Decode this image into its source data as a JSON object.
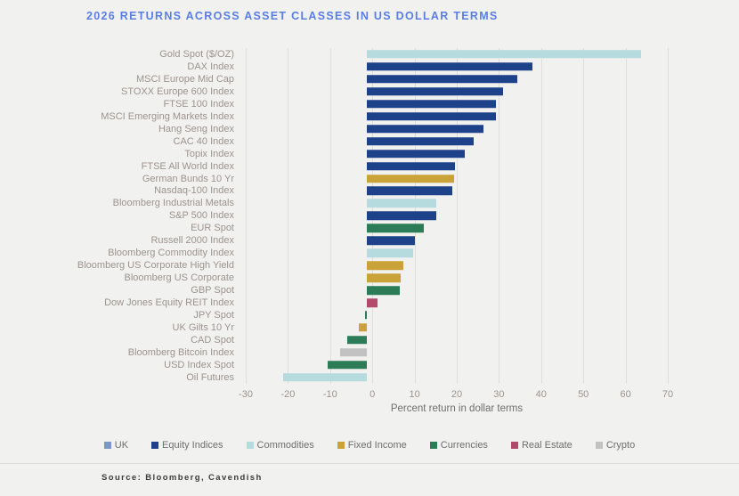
{
  "title": "2026 RETURNS ACROSS ASSET CLASSES IN US DOLLAR TERMS",
  "source": "Source: Bloomberg, Cavendish",
  "colors": {
    "background": "#f1f1ef",
    "title": "#5a7ee3",
    "gridline": "#dfdedb",
    "category_label": "#9d938e",
    "tick_label": "#9d938e",
    "axis_label": "#6f6f6f",
    "legend_text": "#6e6e6e",
    "source_text": "#3d3d3d"
  },
  "chart_data": {
    "type": "bar",
    "orientation": "horizontal",
    "title": "2026 RETURNS ACROSS ASSET CLASSES IN US DOLLAR TERMS",
    "xlabel": "Percent return in dollar terms",
    "ylabel": "",
    "xlim": [
      -30,
      70
    ],
    "xticks": [
      -30,
      -20,
      -10,
      0,
      10,
      20,
      30,
      40,
      50,
      60,
      70
    ],
    "grid": true,
    "legend_position": "bottom",
    "legend": [
      {
        "label": "UK",
        "color": "#7b96c7"
      },
      {
        "label": "Equity Indices",
        "color": "#1e4289"
      },
      {
        "label": "Commodities",
        "color": "#b5dbdf"
      },
      {
        "label": "Fixed Income",
        "color": "#c9a238"
      },
      {
        "label": "Currencies",
        "color": "#2c7d57"
      },
      {
        "label": "Real Estate",
        "color": "#b34a6b"
      },
      {
        "label": "Crypto",
        "color": "#c2c2c2"
      }
    ],
    "rows": [
      {
        "label": "Gold Spot ($/OZ)",
        "value": 65,
        "category": "Commodities"
      },
      {
        "label": "DAX Index",
        "value": 39.3,
        "category": "Equity Indices"
      },
      {
        "label": "MSCI Europe Mid Cap",
        "value": 35.7,
        "category": "Equity Indices"
      },
      {
        "label": "STOXX Europe 600 Index",
        "value": 32.3,
        "category": "Equity Indices"
      },
      {
        "label": "FTSE 100 Index",
        "value": 30.6,
        "category": "Equity Indices"
      },
      {
        "label": "MSCI Emerging Markets Index",
        "value": 30.5,
        "category": "Equity Indices"
      },
      {
        "label": "Hang Seng Index",
        "value": 27.6,
        "category": "Equity Indices"
      },
      {
        "label": "CAC 40 Index",
        "value": 25.3,
        "category": "Equity Indices"
      },
      {
        "label": "Topix Index",
        "value": 23.1,
        "category": "Equity Indices"
      },
      {
        "label": "FTSE All World Index",
        "value": 20.9,
        "category": "Equity Indices"
      },
      {
        "label": "German Bunds 10 Yr",
        "value": 20.6,
        "category": "Fixed Income"
      },
      {
        "label": "Nasdaq-100 Index",
        "value": 20.3,
        "category": "Equity Indices"
      },
      {
        "label": "Bloomberg Industrial Metals",
        "value": 16.5,
        "category": "Commodities"
      },
      {
        "label": "S&P 500 Index",
        "value": 16.4,
        "category": "Equity Indices"
      },
      {
        "label": "EUR Spot",
        "value": 13.5,
        "category": "Currencies"
      },
      {
        "label": "Russell 2000 Index",
        "value": 11.4,
        "category": "Equity Indices"
      },
      {
        "label": "Bloomberg Commodity Index",
        "value": 11.0,
        "category": "Commodities"
      },
      {
        "label": "Bloomberg US Corporate High Yield",
        "value": 8.6,
        "category": "Fixed Income"
      },
      {
        "label": "Bloomberg US Corporate",
        "value": 7.9,
        "category": "Fixed Income"
      },
      {
        "label": "GBP Spot",
        "value": 7.8,
        "category": "Currencies"
      },
      {
        "label": "Dow Jones Equity REIT Index",
        "value": 2.4,
        "category": "Real Estate"
      },
      {
        "label": "JPY Spot",
        "value": -0.5,
        "category": "Currencies"
      },
      {
        "label": "UK Gilts 10 Yr",
        "value": -1.9,
        "category": "Fixed Income"
      },
      {
        "label": "CAD Spot",
        "value": -4.6,
        "category": "Currencies"
      },
      {
        "label": "Bloomberg Bitcoin Index",
        "value": -6.3,
        "category": "Crypto"
      },
      {
        "label": "USD Index Spot",
        "value": -9.3,
        "category": "Currencies"
      },
      {
        "label": "Oil Futures",
        "value": -19.8,
        "category": "Commodities"
      }
    ]
  }
}
